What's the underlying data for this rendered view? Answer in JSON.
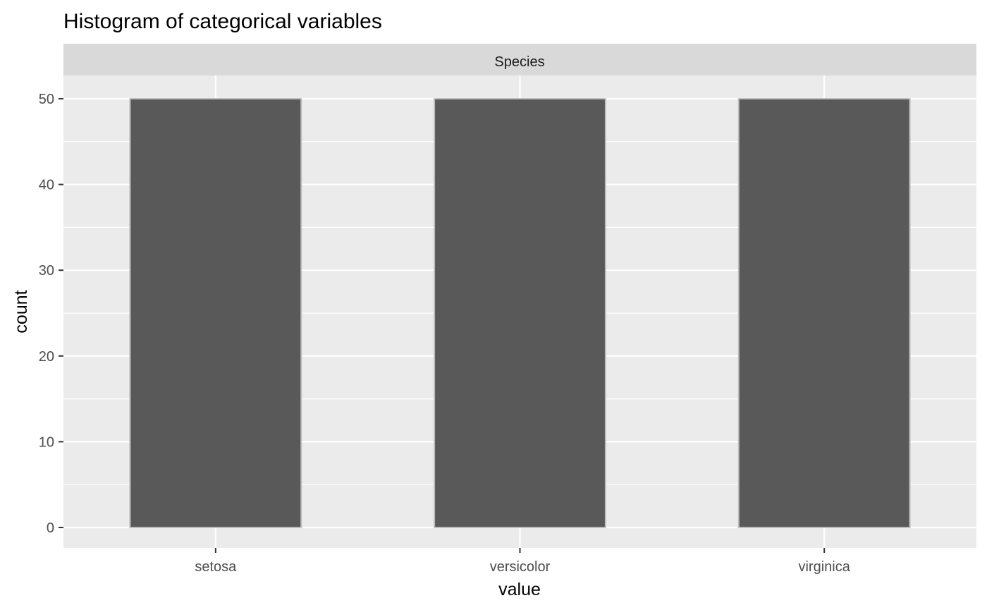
{
  "chart_data": {
    "type": "bar",
    "title": "Histogram of categorical variables",
    "facet_label": "Species",
    "xlabel": "value",
    "ylabel": "count",
    "categories": [
      "setosa",
      "versicolor",
      "virginica"
    ],
    "values": [
      50,
      50,
      50
    ],
    "ylim": [
      0,
      52.5
    ],
    "yticks": [
      0,
      10,
      20,
      30,
      40,
      50
    ],
    "grid": true,
    "legend": "none",
    "colors": {
      "bar_fill": "#595959",
      "bar_outline": "#bfbfbf",
      "panel_background": "#ebebeb",
      "strip_background": "#d9d9d9",
      "grid": "#ffffff"
    }
  }
}
